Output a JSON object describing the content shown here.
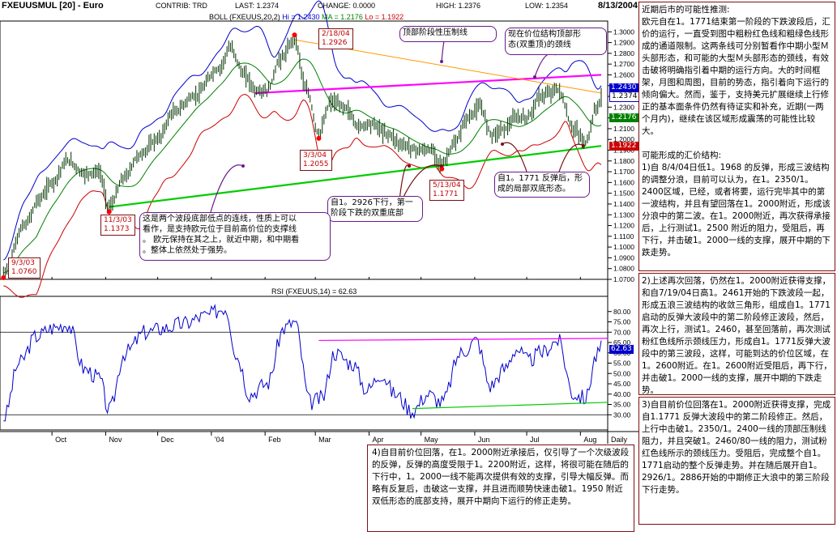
{
  "header": {
    "symbol": "FXEUUSMUL [20] - Euro",
    "contrib_label": "CONTRIB: TRD",
    "last": "LAST: 1.2374",
    "change": "CHANGE: 0.0000",
    "high": "HIGH: 1.2376",
    "low": "LOW: 1.2354",
    "date": "8/13/2004"
  },
  "boll_legend": {
    "name": "BOLL (FXEUUS,20,2)",
    "hi": "Hi = 1.2430",
    "ma": "MA = 1.2176",
    "lo": "Lo = 1.1922",
    "hi_color": "#0000cc",
    "ma_color": "#008000",
    "lo_color": "#cc0000"
  },
  "rsi_legend": "RSI (FXEUUS,14) = 62.63",
  "price_tags": {
    "hi": "1.2430",
    "last": "1.2374",
    "ma": "1.2176",
    "lo": "1.1922"
  },
  "rsi_tag": "62.63",
  "point_labels": [
    {
      "text": "2/18/04\n1.2926"
    },
    {
      "text": "3/3/04\n1.2055"
    },
    {
      "text": "5/13/04\n1.1771"
    },
    {
      "text": "11/3/03\n1.1373"
    },
    {
      "text": "9/3/03\n1.0760"
    }
  ],
  "annotations": {
    "top_resistance": "顶部阶段性压制线",
    "double_top_neck": "现在价位结构顶部形\n态(双重顶)的颈线",
    "double_bottom": "自1。2926下行，第一\n阶段下跌的双重底部",
    "local_double_bottom": "自1。1771 反弹后，形\n成的局部双底形态。",
    "support_line": "这是两个波段底部低点的连线，性质上可以\n看作，是支持欧元位于目前高价位的支撑线\n。 欧元保持在其之上，就近中期，和中期看\n。整体上依然处于强势。"
  },
  "notes": {
    "right_top": "近期后市的可能性推测:\n欧元自在1。1771结束第一阶段的下跌波段后，汇价的运行，一直受到图中粗粉红色线和粗绿色线形成的通道限制。这两条线可分别暂看作中期小型Ｍ头部形态，和可能的大型Ｍ头部形态的颈线，有效击破将明确指引着中期的运行方向。大的时间框架，月图和周图，目前的势态，指引着向下运行的倾向偏大。然而，鉴于，支持美元扩展继续上行修正的基本面条件仍然有待证实和补充，近期(一两个月内)，继续在该区域形成震荡的可能性比较大。\n\n可能形成的汇价结构:\n1)自 8/4/04日低1。1968 的反弹，形成三波结构的调整分浪，目前可以认为，在1。2350/1。2400区域，已经，或者将要，运行完毕其中的第一波结构，并且有望回落在1。2000附近，形成该分浪中的第二波。在1。2000附近，再次获得承接后，上行测试1。2500 附近的阻力，受阻后，再下行，并击破1。2000一线的支撑，展开中期的下跌走势。",
    "right_mid": "2)上述再次回落，仍然在1。2000附近获得支撑，和自7/19/04日高1。2461开始的下跌波段一起，形成五浪三波结构的收敛三角形，组成自1。1771启动的反弹大波段中的第二阶段修正波段，然后，再次上行，测试1。2460，甚至回落前，再次测试粉红色线所示颈线压力，形成自1。1771反弹大波段中的第三波段，这样，可能到达的价位区域，在1。2600附近。在1。2600附近受阻后，再下行，并击破1。2000一线的支撑，展开中期的下跌走势。",
    "right_bottom": "3)自目前价位回落在1。2000附近获得支撑，完成自1.1771 反弹大波段中的第二阶段修正。然后，上行中击破1。2350/1。2400一线的顶部压制线阻力，并且突破1。2460/80一线的阻力，测试粉红色线所示的颈线压力。受阻后，完成整个自1。1771启动的整个反弹走势。并在随后展开自1。2926/1。2886开始的中期修正大浪中的第三阶段下行走势。",
    "bottom": "4)自目前价位回落，在1。2000附近承接后，仅引导了一个次级波段的反弹，反弹的高度受限于1。2200附近，这样，将很可能在随后的下行中，1。2000一线不能再次提供有效的支撑，引导大幅反弹。而略有反复后，击破这一支撑，并且进而顺势快速击破1。1950 附近双低形态的底部支持，展开中期向下运行的修正走势。"
  },
  "chart_data": [
    {
      "type": "line",
      "title": "FXEUUSMUL [20] - Euro",
      "subtitle": "BOLL (FXEUUS,20,2)",
      "xlabel": "",
      "ylabel": "",
      "period": "Daily",
      "x_tick_labels": [
        "Oct",
        "Nov",
        "Dec",
        "'04",
        "Feb",
        "Mar",
        "Apr",
        "May",
        "Jun",
        "Jul",
        "Aug"
      ],
      "ylim": [
        1.07,
        1.31
      ],
      "y_ticks": [
        1.07,
        1.08,
        1.09,
        1.1,
        1.11,
        1.12,
        1.13,
        1.14,
        1.15,
        1.16,
        1.17,
        1.18,
        1.19,
        1.2,
        1.21,
        1.22,
        1.23,
        1.24,
        1.25,
        1.26,
        1.27,
        1.28,
        1.29,
        1.3
      ],
      "x_range": [
        "2003-09-01",
        "2004-08-13"
      ],
      "price_series": [
        [
          "2003-09-03",
          1.076
        ],
        [
          "2003-09-15",
          1.12
        ],
        [
          "2003-09-24",
          1.145
        ],
        [
          "2003-10-01",
          1.16
        ],
        [
          "2003-10-10",
          1.18
        ],
        [
          "2003-10-20",
          1.168
        ],
        [
          "2003-10-28",
          1.17
        ],
        [
          "2003-11-03",
          1.1373
        ],
        [
          "2003-11-12",
          1.165
        ],
        [
          "2003-11-20",
          1.185
        ],
        [
          "2003-12-01",
          1.2
        ],
        [
          "2003-12-10",
          1.225
        ],
        [
          "2003-12-22",
          1.24
        ],
        [
          "2004-01-05",
          1.265
        ],
        [
          "2004-01-12",
          1.285
        ],
        [
          "2004-01-20",
          1.26
        ],
        [
          "2004-01-27",
          1.245
        ],
        [
          "2004-02-02",
          1.245
        ],
        [
          "2004-02-10",
          1.275
        ],
        [
          "2004-02-18",
          1.2926
        ],
        [
          "2004-02-25",
          1.245
        ],
        [
          "2004-03-03",
          1.2055
        ],
        [
          "2004-03-10",
          1.235
        ],
        [
          "2004-03-18",
          1.23
        ],
        [
          "2004-03-26",
          1.212
        ],
        [
          "2004-04-02",
          1.215
        ],
        [
          "2004-04-12",
          1.205
        ],
        [
          "2004-04-20",
          1.195
        ],
        [
          "2004-04-30",
          1.19
        ],
        [
          "2004-05-07",
          1.19
        ],
        [
          "2004-05-13",
          1.1771
        ],
        [
          "2004-05-20",
          1.195
        ],
        [
          "2004-05-28",
          1.22
        ],
        [
          "2004-06-04",
          1.23
        ],
        [
          "2004-06-11",
          1.205
        ],
        [
          "2004-06-18",
          1.21
        ],
        [
          "2004-06-25",
          1.22
        ],
        [
          "2004-07-01",
          1.22
        ],
        [
          "2004-07-09",
          1.24
        ],
        [
          "2004-07-19",
          1.2461
        ],
        [
          "2004-07-28",
          1.21
        ],
        [
          "2004-08-04",
          1.1968
        ],
        [
          "2004-08-10",
          1.228
        ],
        [
          "2004-08-13",
          1.2374
        ]
      ],
      "bollinger": {
        "hi": 1.243,
        "ma": 1.2176,
        "lo": 1.1922
      },
      "trendlines": [
        {
          "name": "pink_neckline",
          "color": "#ff00ff",
          "from": [
            "2004-01-26",
            1.243
          ],
          "to": [
            "2004-08-13",
            1.26
          ]
        },
        {
          "name": "green_support",
          "color": "#00cc00",
          "from": [
            "2003-11-03",
            1.1373
          ],
          "to": [
            "2004-08-13",
            1.194
          ]
        },
        {
          "name": "orange_resistance",
          "color": "#ff9900",
          "from": [
            "2004-02-18",
            1.2926
          ],
          "to": [
            "2004-08-13",
            1.243
          ]
        }
      ]
    },
    {
      "type": "line",
      "title": "RSI (FXEUUS,14) = 62.63",
      "ylim": [
        25,
        85
      ],
      "y_ticks": [
        30,
        35,
        40,
        45,
        50,
        55,
        60,
        65,
        70,
        75,
        80
      ],
      "x_tick_labels": [
        "Oct",
        "Nov",
        "Dec",
        "'04",
        "Feb",
        "Mar",
        "Apr",
        "May",
        "Jun",
        "Jul",
        "Aug",
        "Daily"
      ],
      "reference_lines": [
        70,
        30
      ],
      "series": [
        {
          "values": [
            [
              "2003-09-03",
              28
            ],
            [
              "2003-09-12",
              55
            ],
            [
              "2003-09-22",
              68
            ],
            [
              "2003-10-01",
              72
            ],
            [
              "2003-10-10",
              74
            ],
            [
              "2003-10-20",
              52
            ],
            [
              "2003-10-28",
              48
            ],
            [
              "2003-11-03",
              32
            ],
            [
              "2003-11-12",
              60
            ],
            [
              "2003-11-24",
              70
            ],
            [
              "2003-12-05",
              72
            ],
            [
              "2003-12-15",
              74
            ],
            [
              "2003-12-29",
              78
            ],
            [
              "2004-01-09",
              82
            ],
            [
              "2004-01-16",
              58
            ],
            [
              "2004-01-23",
              40
            ],
            [
              "2004-02-02",
              45
            ],
            [
              "2004-02-12",
              72
            ],
            [
              "2004-02-18",
              75
            ],
            [
              "2004-02-27",
              36
            ],
            [
              "2004-03-05",
              38
            ],
            [
              "2004-03-12",
              60
            ],
            [
              "2004-03-22",
              55
            ],
            [
              "2004-03-31",
              42
            ],
            [
              "2004-04-08",
              50
            ],
            [
              "2004-04-16",
              40
            ],
            [
              "2004-04-26",
              32
            ],
            [
              "2004-05-05",
              40
            ],
            [
              "2004-05-13",
              36
            ],
            [
              "2004-05-24",
              60
            ],
            [
              "2004-06-02",
              66
            ],
            [
              "2004-06-10",
              44
            ],
            [
              "2004-06-18",
              52
            ],
            [
              "2004-06-25",
              62
            ],
            [
              "2004-07-02",
              56
            ],
            [
              "2004-07-09",
              60
            ],
            [
              "2004-07-19",
              66
            ],
            [
              "2004-07-28",
              40
            ],
            [
              "2004-08-04",
              38
            ],
            [
              "2004-08-10",
              58
            ],
            [
              "2004-08-13",
              62.63
            ]
          ]
        }
      ]
    }
  ]
}
